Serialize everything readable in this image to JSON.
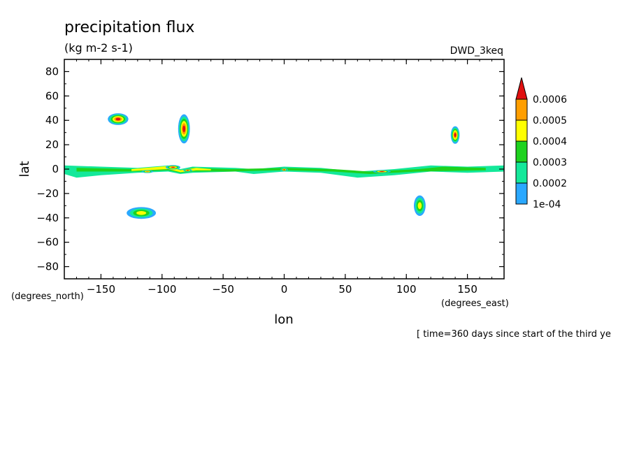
{
  "chart_data": {
    "type": "heatmap",
    "title": "precipitation flux",
    "units": "(kg m-2 s-1)",
    "dataset": "DWD_3keq",
    "xlabel": "lon",
    "ylabel": "lat",
    "x_units_label": "(degrees_east)",
    "y_units_label": "(degrees_north)",
    "time_label": "[ time=360 days since start of the third ye",
    "xlim": [
      -180,
      180
    ],
    "ylim": [
      -90,
      90
    ],
    "x_ticks": [
      -150,
      -100,
      -50,
      0,
      50,
      100,
      150
    ],
    "y_ticks": [
      -80,
      -60,
      -40,
      -20,
      0,
      20,
      40,
      60,
      80
    ],
    "x_tick_labels": [
      "−150",
      "−100",
      "−50",
      "0",
      "50",
      "100",
      "150"
    ],
    "y_tick_labels": [
      "−80",
      "−60",
      "−40",
      "−20",
      "0",
      "20",
      "40",
      "60",
      "80"
    ],
    "colorbar": {
      "levels": [
        0.0001,
        0.0002,
        0.0003,
        0.0004,
        0.0005,
        0.0006
      ],
      "labels": [
        "1e-04",
        "0.0002",
        "0.0003",
        "0.0004",
        "0.0005",
        "0.0006"
      ],
      "colors": [
        "#2aa8ff",
        "#14e89a",
        "#1ed21e",
        "#ffff00",
        "#ff9e00",
        "#e01010"
      ]
    },
    "features": [
      {
        "name": "itcz-band",
        "lon": [
          -180,
          180
        ],
        "lat": [
          -6,
          6
        ],
        "value": 0.0002,
        "path": [
          [
            -180,
            3
          ],
          [
            -150,
            2
          ],
          [
            -120,
            1
          ],
          [
            -95,
            3
          ],
          [
            -85,
            0
          ],
          [
            -75,
            2
          ],
          [
            -40,
            1
          ],
          [
            -25,
            0
          ],
          [
            0,
            2
          ],
          [
            30,
            1
          ],
          [
            60,
            -2
          ],
          [
            90,
            0
          ],
          [
            120,
            3
          ],
          [
            150,
            2
          ],
          [
            180,
            3
          ],
          [
            180,
            -2
          ],
          [
            150,
            -3
          ],
          [
            120,
            -2
          ],
          [
            90,
            -5
          ],
          [
            60,
            -7
          ],
          [
            30,
            -3
          ],
          [
            0,
            -2
          ],
          [
            -25,
            -4
          ],
          [
            -40,
            -2
          ],
          [
            -75,
            -3
          ],
          [
            -85,
            -4
          ],
          [
            -95,
            -2
          ],
          [
            -120,
            -3
          ],
          [
            -150,
            -5
          ],
          [
            -170,
            -7
          ],
          [
            -180,
            -4
          ]
        ]
      },
      {
        "name": "itcz-band-core",
        "lon": [
          -170,
          170
        ],
        "lat": [
          -3,
          4
        ],
        "value": 0.0003,
        "path": [
          [
            -170,
            1
          ],
          [
            -120,
            0
          ],
          [
            -95,
            2
          ],
          [
            -85,
            -1
          ],
          [
            -75,
            1
          ],
          [
            -45,
            0
          ],
          [
            0,
            1
          ],
          [
            40,
            0
          ],
          [
            70,
            -2
          ],
          [
            110,
            0
          ],
          [
            130,
            2
          ],
          [
            165,
            1
          ],
          [
            165,
            -1
          ],
          [
            110,
            -2
          ],
          [
            70,
            -4
          ],
          [
            40,
            -2
          ],
          [
            0,
            -1
          ],
          [
            -45,
            -2
          ],
          [
            -75,
            -2
          ],
          [
            -85,
            -3
          ],
          [
            -95,
            -1
          ],
          [
            -120,
            -2
          ],
          [
            -170,
            -2
          ]
        ]
      },
      {
        "name": "itcz-band-high",
        "lon": [
          -125,
          120
        ],
        "lat": [
          -2,
          3
        ],
        "value": 0.0004,
        "path": [
          [
            -125,
            0
          ],
          [
            -95,
            2.5
          ],
          [
            -85,
            -1
          ],
          [
            -72,
            1
          ],
          [
            -60,
            0
          ],
          [
            -60,
            -1
          ],
          [
            -72,
            -1
          ],
          [
            -85,
            -2.5
          ],
          [
            -95,
            0
          ],
          [
            -125,
            -1.5
          ]
        ]
      },
      {
        "name": "max-eq-1",
        "lon": [
          -96,
          -87
        ],
        "lat": [
          0,
          3
        ],
        "value": 0.0006,
        "center": [
          -91,
          1.5
        ],
        "radius": [
          5,
          1.5
        ]
      },
      {
        "name": "max-eq-2",
        "lon": [
          -82,
          -75
        ],
        "lat": [
          -2,
          0
        ],
        "value": 0.0006,
        "center": [
          -79,
          -1
        ],
        "radius": [
          3,
          1
        ]
      },
      {
        "name": "max-eq-3",
        "lon": [
          -2,
          3
        ],
        "lat": [
          -2,
          1
        ],
        "value": 0.0006,
        "center": [
          0,
          -0.5
        ],
        "radius": [
          2.5,
          1.2
        ]
      },
      {
        "name": "max-eq-4",
        "lon": [
          74,
          86
        ],
        "lat": [
          -3,
          -1
        ],
        "value": 0.0006,
        "center": [
          80,
          -2
        ],
        "radius": [
          6,
          1
        ]
      },
      {
        "name": "max-eq-5",
        "lon": [
          -116,
          -108
        ],
        "lat": [
          -3,
          -1
        ],
        "value": 0.0005,
        "center": [
          -112,
          -2
        ],
        "radius": [
          4,
          1
        ]
      },
      {
        "name": "storm-nw-pacific",
        "center": [
          -136,
          41
        ],
        "radius": [
          7,
          4
        ],
        "value": 0.0006
      },
      {
        "name": "storm-n-america",
        "center": [
          -82,
          33
        ],
        "radius": [
          4,
          10
        ],
        "value": 0.0006
      },
      {
        "name": "storm-japan",
        "center": [
          140,
          28
        ],
        "radius": [
          3,
          6
        ],
        "value": 0.0006
      },
      {
        "name": "storm-s-pacific",
        "center": [
          -117,
          -36
        ],
        "radius": [
          10,
          4
        ],
        "value": 0.0004
      },
      {
        "name": "storm-s-indian",
        "center": [
          111,
          -30
        ],
        "radius": [
          4,
          7
        ],
        "value": 0.0004
      }
    ]
  }
}
